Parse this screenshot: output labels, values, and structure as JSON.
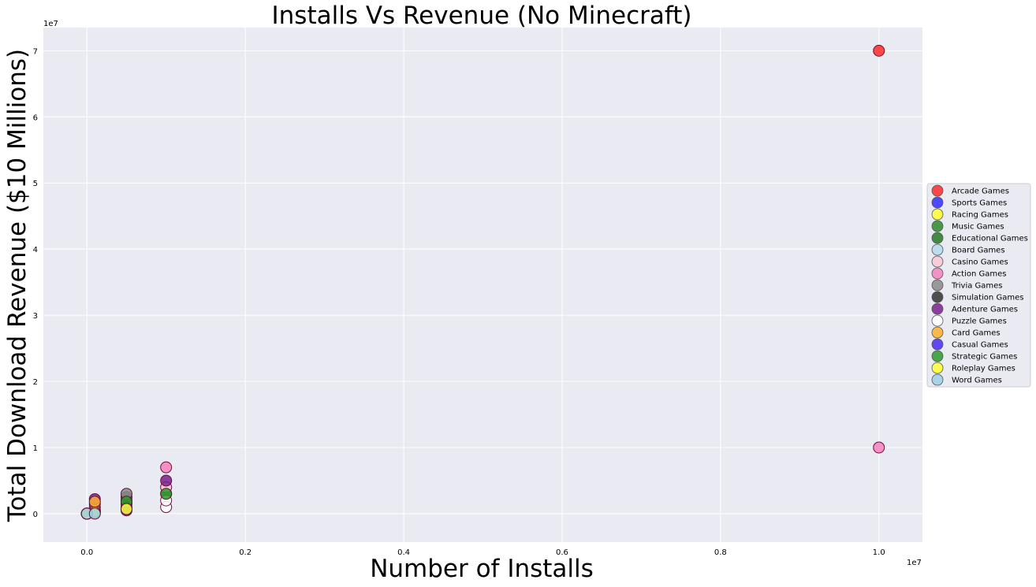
{
  "chart_data": {
    "type": "scatter",
    "title": "Installs Vs Revenue (No Minecraft)",
    "xlabel": "Number of Installs",
    "ylabel": "Total Download Revenue ($10 Millions)",
    "x_offset_label": "1e7",
    "y_offset_label": "1e7",
    "xlim": [
      -550000,
      10550000
    ],
    "ylim": [
      -4300000,
      73500000
    ],
    "x_ticks": [
      0,
      2000000,
      4000000,
      6000000,
      8000000,
      10000000
    ],
    "x_tick_labels": [
      "0.0",
      "0.2",
      "0.4",
      "0.6",
      "0.8",
      "1.0"
    ],
    "y_ticks": [
      0,
      10000000,
      20000000,
      30000000,
      40000000,
      50000000,
      60000000,
      70000000
    ],
    "y_tick_labels": [
      "0",
      "1",
      "2",
      "3",
      "4",
      "5",
      "6",
      "7"
    ],
    "grid": true,
    "background": "#eaeaf2",
    "legend_position": "center-right",
    "series": [
      {
        "name": "Arcade Games",
        "color": "#ff2a2a",
        "points": [
          [
            10000000,
            70000000
          ],
          [
            0,
            0
          ],
          [
            100000,
            300000
          ]
        ]
      },
      {
        "name": "Sports Games",
        "color": "#2f2fff",
        "points": [
          [
            0,
            0
          ],
          [
            100000,
            200000
          ]
        ]
      },
      {
        "name": "Racing Games",
        "color": "#ffff33",
        "points": [
          [
            500000,
            1500000
          ],
          [
            100000,
            1000000
          ]
        ]
      },
      {
        "name": "Music Games",
        "color": "#2e8b2e",
        "points": [
          [
            500000,
            2000000
          ],
          [
            1000000,
            3000000
          ]
        ]
      },
      {
        "name": "Educational Games",
        "color": "#237a23",
        "points": [
          [
            500000,
            2500000
          ],
          [
            0,
            0
          ]
        ]
      },
      {
        "name": "Board Games",
        "color": "#b4dcec",
        "points": [
          [
            100000,
            500000
          ],
          [
            0,
            0
          ]
        ]
      },
      {
        "name": "Casino Games",
        "color": "#f8c8d4",
        "points": [
          [
            1000000,
            4000000
          ],
          [
            100000,
            1500000
          ]
        ]
      },
      {
        "name": "Action Games",
        "color": "#f780bf",
        "points": [
          [
            10000000,
            10000000
          ],
          [
            1000000,
            7000000
          ],
          [
            100000,
            500000
          ]
        ]
      },
      {
        "name": "Trivia Games",
        "color": "#8a8a8a",
        "points": [
          [
            500000,
            3000000
          ],
          [
            0,
            0
          ]
        ]
      },
      {
        "name": "Simulation Games",
        "color": "#333333",
        "points": [
          [
            500000,
            1000000
          ],
          [
            0,
            0
          ]
        ]
      },
      {
        "name": "Adenture Games",
        "color": "#7b2091",
        "points": [
          [
            100000,
            2200000
          ],
          [
            1000000,
            5000000
          ],
          [
            0,
            0
          ]
        ]
      },
      {
        "name": "Puzzle Games",
        "color": "#ffffff",
        "points": [
          [
            1000000,
            1000000
          ],
          [
            1000000,
            2000000
          ],
          [
            0,
            0
          ]
        ]
      },
      {
        "name": "Card Games",
        "color": "#ffb02e",
        "points": [
          [
            100000,
            1800000
          ],
          [
            0,
            0
          ]
        ]
      },
      {
        "name": "Casual Games",
        "color": "#4a2cf5",
        "points": [
          [
            500000,
            500000
          ],
          [
            0,
            0
          ]
        ]
      },
      {
        "name": "Strategic Games",
        "color": "#2e9a2e",
        "points": [
          [
            1000000,
            3000000
          ],
          [
            500000,
            1800000
          ]
        ]
      },
      {
        "name": "Roleplay Games",
        "color": "#ffff33",
        "points": [
          [
            0,
            0
          ],
          [
            100000,
            200000
          ],
          [
            500000,
            700000
          ]
        ]
      },
      {
        "name": "Word Games",
        "color": "#9ccfe8",
        "points": [
          [
            0,
            0
          ],
          [
            100000,
            0
          ]
        ]
      }
    ]
  }
}
